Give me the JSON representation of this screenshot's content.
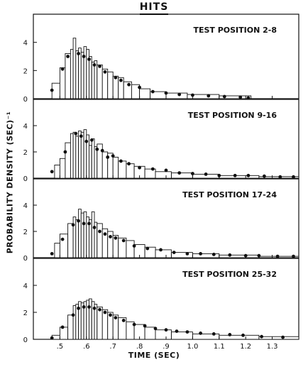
{
  "title": "HITS",
  "xlabel": "TIME (SEC)",
  "ylabel": "PROBABILITY DENSITY (SEC)⁻¹",
  "chart_data": [
    {
      "type": "bar",
      "title": "TEST POSITION 2-8",
      "xlim": [
        0.4,
        1.4
      ],
      "ylim": [
        0,
        6
      ],
      "yticks": [
        0,
        2,
        4
      ],
      "xticks": [
        ".5",
        ".6",
        ".7",
        ".8",
        ".9",
        "1.0",
        "1.1",
        "1.2",
        "1.3"
      ],
      "bins": [
        {
          "x0": 0.47,
          "x1": 0.5,
          "y": 1.1
        },
        {
          "x0": 0.5,
          "x1": 0.52,
          "y": 2.2
        },
        {
          "x0": 0.52,
          "x1": 0.54,
          "y": 3.2
        },
        {
          "x0": 0.54,
          "x1": 0.55,
          "y": 3.5
        },
        {
          "x0": 0.55,
          "x1": 0.56,
          "y": 4.3
        },
        {
          "x0": 0.56,
          "x1": 0.57,
          "y": 3.4
        },
        {
          "x0": 0.57,
          "x1": 0.58,
          "y": 3.6
        },
        {
          "x0": 0.58,
          "x1": 0.59,
          "y": 3.3
        },
        {
          "x0": 0.59,
          "x1": 0.6,
          "y": 3.7
        },
        {
          "x0": 0.6,
          "x1": 0.61,
          "y": 3.5
        },
        {
          "x0": 0.61,
          "x1": 0.62,
          "y": 3.0
        },
        {
          "x0": 0.62,
          "x1": 0.63,
          "y": 2.6
        },
        {
          "x0": 0.63,
          "x1": 0.64,
          "y": 2.7
        },
        {
          "x0": 0.64,
          "x1": 0.66,
          "y": 2.4
        },
        {
          "x0": 0.66,
          "x1": 0.68,
          "y": 2.1
        },
        {
          "x0": 0.68,
          "x1": 0.7,
          "y": 1.9
        },
        {
          "x0": 0.7,
          "x1": 0.72,
          "y": 1.6
        },
        {
          "x0": 0.72,
          "x1": 0.74,
          "y": 1.5
        },
        {
          "x0": 0.74,
          "x1": 0.77,
          "y": 1.2
        },
        {
          "x0": 0.77,
          "x1": 0.8,
          "y": 1.0
        },
        {
          "x0": 0.8,
          "x1": 0.84,
          "y": 0.7
        },
        {
          "x0": 0.84,
          "x1": 0.9,
          "y": 0.5
        },
        {
          "x0": 0.9,
          "x1": 0.98,
          "y": 0.4
        },
        {
          "x0": 0.98,
          "x1": 1.1,
          "y": 0.3
        },
        {
          "x0": 1.1,
          "x1": 1.22,
          "y": 0.2
        }
      ],
      "points": [
        [
          0.47,
          0.6
        ],
        [
          0.51,
          2.1
        ],
        [
          0.53,
          3.0
        ],
        [
          0.57,
          3.2
        ],
        [
          0.59,
          3.0
        ],
        [
          0.61,
          2.8
        ],
        [
          0.63,
          2.4
        ],
        [
          0.65,
          2.3
        ],
        [
          0.67,
          1.9
        ],
        [
          0.71,
          1.5
        ],
        [
          0.73,
          1.3
        ],
        [
          0.76,
          1.0
        ],
        [
          0.8,
          0.8
        ],
        [
          0.85,
          0.5
        ],
        [
          0.9,
          0.4
        ],
        [
          0.95,
          0.3
        ],
        [
          1.0,
          0.25
        ],
        [
          1.06,
          0.2
        ],
        [
          1.12,
          0.15
        ],
        [
          1.18,
          0.1
        ],
        [
          1.21,
          0.05
        ]
      ]
    },
    {
      "type": "bar",
      "title": "TEST POSITION 9-16",
      "xlim": [
        0.4,
        1.4
      ],
      "ylim": [
        0,
        6
      ],
      "yticks": [
        0,
        2,
        4
      ],
      "xticks": [
        ".5",
        ".6",
        ".7",
        ".8",
        ".9",
        "1.0",
        "1.1",
        "1.2",
        "1.3"
      ],
      "bins": [
        {
          "x0": 0.48,
          "x1": 0.5,
          "y": 1.0
        },
        {
          "x0": 0.5,
          "x1": 0.52,
          "y": 1.5
        },
        {
          "x0": 0.52,
          "x1": 0.54,
          "y": 2.7
        },
        {
          "x0": 0.54,
          "x1": 0.55,
          "y": 3.4
        },
        {
          "x0": 0.55,
          "x1": 0.56,
          "y": 3.5
        },
        {
          "x0": 0.56,
          "x1": 0.57,
          "y": 3.2
        },
        {
          "x0": 0.57,
          "x1": 0.58,
          "y": 3.6
        },
        {
          "x0": 0.58,
          "x1": 0.59,
          "y": 3.5
        },
        {
          "x0": 0.59,
          "x1": 0.6,
          "y": 3.7
        },
        {
          "x0": 0.6,
          "x1": 0.61,
          "y": 3.3
        },
        {
          "x0": 0.61,
          "x1": 0.62,
          "y": 2.5
        },
        {
          "x0": 0.62,
          "x1": 0.63,
          "y": 3.0
        },
        {
          "x0": 0.63,
          "x1": 0.64,
          "y": 2.4
        },
        {
          "x0": 0.64,
          "x1": 0.66,
          "y": 2.6
        },
        {
          "x0": 0.66,
          "x1": 0.68,
          "y": 2.0
        },
        {
          "x0": 0.68,
          "x1": 0.7,
          "y": 1.9
        },
        {
          "x0": 0.7,
          "x1": 0.72,
          "y": 1.6
        },
        {
          "x0": 0.72,
          "x1": 0.75,
          "y": 1.3
        },
        {
          "x0": 0.75,
          "x1": 0.78,
          "y": 1.1
        },
        {
          "x0": 0.78,
          "x1": 0.82,
          "y": 0.9
        },
        {
          "x0": 0.82,
          "x1": 0.86,
          "y": 0.7
        },
        {
          "x0": 0.86,
          "x1": 0.92,
          "y": 0.5
        },
        {
          "x0": 0.92,
          "x1": 1.0,
          "y": 0.4
        },
        {
          "x0": 1.0,
          "x1": 1.1,
          "y": 0.3
        },
        {
          "x0": 1.1,
          "x1": 1.25,
          "y": 0.2
        },
        {
          "x0": 1.25,
          "x1": 1.4,
          "y": 0.12
        }
      ],
      "points": [
        [
          0.47,
          0.5
        ],
        [
          0.52,
          2.0
        ],
        [
          0.56,
          3.4
        ],
        [
          0.58,
          3.2
        ],
        [
          0.6,
          2.8
        ],
        [
          0.62,
          2.9
        ],
        [
          0.64,
          2.2
        ],
        [
          0.66,
          2.1
        ],
        [
          0.68,
          1.6
        ],
        [
          0.7,
          1.7
        ],
        [
          0.73,
          1.3
        ],
        [
          0.76,
          1.1
        ],
        [
          0.8,
          0.8
        ],
        [
          0.85,
          0.7
        ],
        [
          0.9,
          0.6
        ],
        [
          0.95,
          0.4
        ],
        [
          1.0,
          0.35
        ],
        [
          1.05,
          0.3
        ],
        [
          1.1,
          0.2
        ],
        [
          1.16,
          0.2
        ],
        [
          1.21,
          0.2
        ],
        [
          1.27,
          0.15
        ],
        [
          1.33,
          0.1
        ],
        [
          1.38,
          0.1
        ]
      ]
    },
    {
      "type": "bar",
      "title": "TEST POSITION 17-24",
      "xlim": [
        0.4,
        1.4
      ],
      "ylim": [
        0,
        6
      ],
      "yticks": [
        0,
        2,
        4
      ],
      "xticks": [
        ".5",
        ".6",
        ".7",
        ".8",
        ".9",
        "1.0",
        "1.1",
        "1.2",
        "1.3"
      ],
      "bins": [
        {
          "x0": 0.48,
          "x1": 0.5,
          "y": 1.1
        },
        {
          "x0": 0.5,
          "x1": 0.53,
          "y": 1.8
        },
        {
          "x0": 0.53,
          "x1": 0.55,
          "y": 2.6
        },
        {
          "x0": 0.55,
          "x1": 0.56,
          "y": 3.1
        },
        {
          "x0": 0.56,
          "x1": 0.57,
          "y": 2.9
        },
        {
          "x0": 0.57,
          "x1": 0.58,
          "y": 3.7
        },
        {
          "x0": 0.58,
          "x1": 0.59,
          "y": 3.4
        },
        {
          "x0": 0.59,
          "x1": 0.6,
          "y": 3.5
        },
        {
          "x0": 0.6,
          "x1": 0.61,
          "y": 3.1
        },
        {
          "x0": 0.61,
          "x1": 0.62,
          "y": 2.9
        },
        {
          "x0": 0.62,
          "x1": 0.63,
          "y": 3.5
        },
        {
          "x0": 0.63,
          "x1": 0.64,
          "y": 2.7
        },
        {
          "x0": 0.64,
          "x1": 0.66,
          "y": 2.6
        },
        {
          "x0": 0.66,
          "x1": 0.68,
          "y": 2.2
        },
        {
          "x0": 0.68,
          "x1": 0.7,
          "y": 2.0
        },
        {
          "x0": 0.7,
          "x1": 0.72,
          "y": 1.7
        },
        {
          "x0": 0.72,
          "x1": 0.75,
          "y": 1.5
        },
        {
          "x0": 0.75,
          "x1": 0.78,
          "y": 1.3
        },
        {
          "x0": 0.78,
          "x1": 0.82,
          "y": 1.0
        },
        {
          "x0": 0.82,
          "x1": 0.86,
          "y": 0.8
        },
        {
          "x0": 0.86,
          "x1": 0.92,
          "y": 0.6
        },
        {
          "x0": 0.92,
          "x1": 1.0,
          "y": 0.4
        },
        {
          "x0": 1.0,
          "x1": 1.1,
          "y": 0.3
        },
        {
          "x0": 1.1,
          "x1": 1.25,
          "y": 0.2
        },
        {
          "x0": 1.25,
          "x1": 1.4,
          "y": 0.1
        }
      ],
      "points": [
        [
          0.47,
          0.3
        ],
        [
          0.51,
          1.4
        ],
        [
          0.55,
          2.5
        ],
        [
          0.57,
          2.8
        ],
        [
          0.59,
          2.6
        ],
        [
          0.61,
          2.6
        ],
        [
          0.63,
          2.3
        ],
        [
          0.65,
          2.0
        ],
        [
          0.67,
          1.8
        ],
        [
          0.69,
          1.6
        ],
        [
          0.71,
          1.5
        ],
        [
          0.74,
          1.3
        ],
        [
          0.78,
          0.9
        ],
        [
          0.83,
          0.7
        ],
        [
          0.88,
          0.6
        ],
        [
          0.93,
          0.4
        ],
        [
          0.98,
          0.3
        ],
        [
          1.03,
          0.3
        ],
        [
          1.08,
          0.25
        ],
        [
          1.14,
          0.2
        ],
        [
          1.2,
          0.15
        ],
        [
          1.25,
          0.15
        ],
        [
          1.32,
          0.1
        ],
        [
          1.38,
          0.1
        ]
      ]
    },
    {
      "type": "bar",
      "title": "TEST POSITION 25-32",
      "xlim": [
        0.4,
        1.4
      ],
      "ylim": [
        0,
        6
      ],
      "yticks": [
        0,
        2,
        4
      ],
      "xticks": [
        ".5",
        ".6",
        ".7",
        ".8",
        ".9",
        "1.0",
        "1.1",
        "1.2",
        "1.3"
      ],
      "bins": [
        {
          "x0": 0.47,
          "x1": 0.5,
          "y": 0.3
        },
        {
          "x0": 0.5,
          "x1": 0.53,
          "y": 0.9
        },
        {
          "x0": 0.53,
          "x1": 0.55,
          "y": 1.8
        },
        {
          "x0": 0.55,
          "x1": 0.56,
          "y": 2.5
        },
        {
          "x0": 0.56,
          "x1": 0.57,
          "y": 2.6
        },
        {
          "x0": 0.57,
          "x1": 0.58,
          "y": 2.8
        },
        {
          "x0": 0.58,
          "x1": 0.59,
          "y": 2.7
        },
        {
          "x0": 0.59,
          "x1": 0.6,
          "y": 2.8
        },
        {
          "x0": 0.6,
          "x1": 0.61,
          "y": 2.9
        },
        {
          "x0": 0.61,
          "x1": 0.62,
          "y": 3.0
        },
        {
          "x0": 0.62,
          "x1": 0.63,
          "y": 2.8
        },
        {
          "x0": 0.63,
          "x1": 0.64,
          "y": 2.6
        },
        {
          "x0": 0.64,
          "x1": 0.66,
          "y": 2.4
        },
        {
          "x0": 0.66,
          "x1": 0.68,
          "y": 2.2
        },
        {
          "x0": 0.68,
          "x1": 0.7,
          "y": 2.0
        },
        {
          "x0": 0.7,
          "x1": 0.72,
          "y": 1.8
        },
        {
          "x0": 0.72,
          "x1": 0.75,
          "y": 1.6
        },
        {
          "x0": 0.75,
          "x1": 0.78,
          "y": 1.3
        },
        {
          "x0": 0.78,
          "x1": 0.82,
          "y": 1.1
        },
        {
          "x0": 0.82,
          "x1": 0.86,
          "y": 0.9
        },
        {
          "x0": 0.86,
          "x1": 0.92,
          "y": 0.7
        },
        {
          "x0": 0.92,
          "x1": 1.0,
          "y": 0.55
        },
        {
          "x0": 1.0,
          "x1": 1.1,
          "y": 0.4
        },
        {
          "x0": 1.1,
          "x1": 1.25,
          "y": 0.3
        },
        {
          "x0": 1.25,
          "x1": 1.4,
          "y": 0.2
        }
      ],
      "points": [
        [
          0.47,
          0.1
        ],
        [
          0.51,
          0.9
        ],
        [
          0.55,
          1.8
        ],
        [
          0.57,
          2.3
        ],
        [
          0.59,
          2.4
        ],
        [
          0.61,
          2.4
        ],
        [
          0.63,
          2.3
        ],
        [
          0.65,
          2.2
        ],
        [
          0.67,
          2.0
        ],
        [
          0.69,
          1.8
        ],
        [
          0.71,
          1.6
        ],
        [
          0.74,
          1.4
        ],
        [
          0.78,
          1.1
        ],
        [
          0.82,
          1.0
        ],
        [
          0.86,
          0.8
        ],
        [
          0.9,
          0.7
        ],
        [
          0.94,
          0.6
        ],
        [
          0.98,
          0.55
        ],
        [
          1.03,
          0.45
        ],
        [
          1.08,
          0.4
        ],
        [
          1.14,
          0.35
        ],
        [
          1.19,
          0.3
        ],
        [
          1.26,
          0.2
        ],
        [
          1.34,
          0.15
        ]
      ]
    }
  ]
}
